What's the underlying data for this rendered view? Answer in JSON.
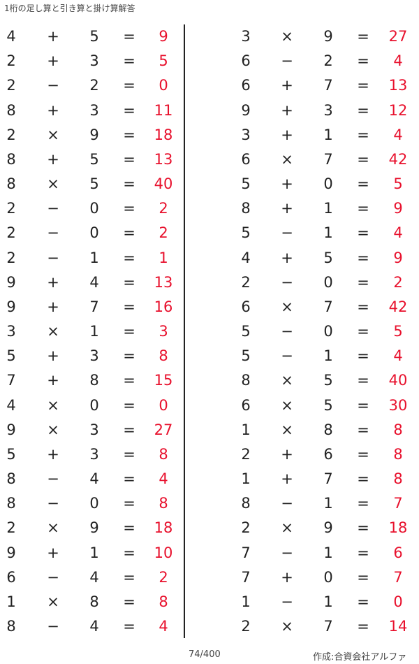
{
  "title": "1桁の足し算と引き算と掛け算解答",
  "answer_color": "#e8112d",
  "left": [
    [
      "4",
      "+",
      "5",
      "=",
      "9"
    ],
    [
      "2",
      "+",
      "3",
      "=",
      "5"
    ],
    [
      "2",
      "−",
      "2",
      "=",
      "0"
    ],
    [
      "8",
      "+",
      "3",
      "=",
      "11"
    ],
    [
      "2",
      "×",
      "9",
      "=",
      "18"
    ],
    [
      "8",
      "+",
      "5",
      "=",
      "13"
    ],
    [
      "8",
      "×",
      "5",
      "=",
      "40"
    ],
    [
      "2",
      "−",
      "0",
      "=",
      "2"
    ],
    [
      "2",
      "−",
      "0",
      "=",
      "2"
    ],
    [
      "2",
      "−",
      "1",
      "=",
      "1"
    ],
    [
      "9",
      "+",
      "4",
      "=",
      "13"
    ],
    [
      "9",
      "+",
      "7",
      "=",
      "16"
    ],
    [
      "3",
      "×",
      "1",
      "=",
      "3"
    ],
    [
      "5",
      "+",
      "3",
      "=",
      "8"
    ],
    [
      "7",
      "+",
      "8",
      "=",
      "15"
    ],
    [
      "4",
      "×",
      "0",
      "=",
      "0"
    ],
    [
      "9",
      "×",
      "3",
      "=",
      "27"
    ],
    [
      "5",
      "+",
      "3",
      "=",
      "8"
    ],
    [
      "8",
      "−",
      "4",
      "=",
      "4"
    ],
    [
      "8",
      "−",
      "0",
      "=",
      "8"
    ],
    [
      "2",
      "×",
      "9",
      "=",
      "18"
    ],
    [
      "9",
      "+",
      "1",
      "=",
      "10"
    ],
    [
      "6",
      "−",
      "4",
      "=",
      "2"
    ],
    [
      "1",
      "×",
      "8",
      "=",
      "8"
    ],
    [
      "8",
      "−",
      "4",
      "=",
      "4"
    ]
  ],
  "right": [
    [
      "3",
      "×",
      "9",
      "=",
      "27"
    ],
    [
      "6",
      "−",
      "2",
      "=",
      "4"
    ],
    [
      "6",
      "+",
      "7",
      "=",
      "13"
    ],
    [
      "9",
      "+",
      "3",
      "=",
      "12"
    ],
    [
      "3",
      "+",
      "1",
      "=",
      "4"
    ],
    [
      "6",
      "×",
      "7",
      "=",
      "42"
    ],
    [
      "5",
      "+",
      "0",
      "=",
      "5"
    ],
    [
      "8",
      "+",
      "1",
      "=",
      "9"
    ],
    [
      "5",
      "−",
      "1",
      "=",
      "4"
    ],
    [
      "4",
      "+",
      "5",
      "=",
      "9"
    ],
    [
      "2",
      "−",
      "0",
      "=",
      "2"
    ],
    [
      "6",
      "×",
      "7",
      "=",
      "42"
    ],
    [
      "5",
      "−",
      "0",
      "=",
      "5"
    ],
    [
      "5",
      "−",
      "1",
      "=",
      "4"
    ],
    [
      "8",
      "×",
      "5",
      "=",
      "40"
    ],
    [
      "6",
      "×",
      "5",
      "=",
      "30"
    ],
    [
      "1",
      "×",
      "8",
      "=",
      "8"
    ],
    [
      "2",
      "+",
      "6",
      "=",
      "8"
    ],
    [
      "1",
      "+",
      "7",
      "=",
      "8"
    ],
    [
      "8",
      "−",
      "1",
      "=",
      "7"
    ],
    [
      "2",
      "×",
      "9",
      "=",
      "18"
    ],
    [
      "7",
      "−",
      "1",
      "=",
      "6"
    ],
    [
      "7",
      "+",
      "0",
      "=",
      "7"
    ],
    [
      "1",
      "−",
      "1",
      "=",
      "0"
    ],
    [
      "2",
      "×",
      "7",
      "=",
      "14"
    ]
  ],
  "footer": {
    "page": "74/400",
    "credit": "作成:合資会社アルファ"
  }
}
